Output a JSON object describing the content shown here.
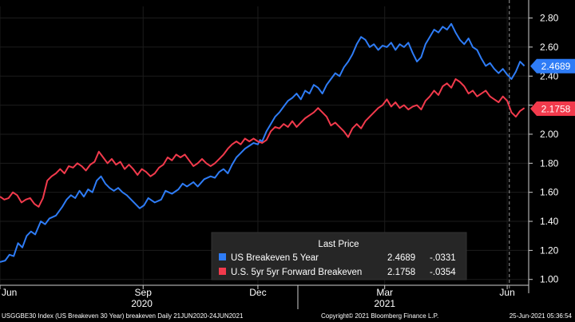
{
  "chart_data": {
    "type": "line",
    "title": "USGGBE30 Index (US Breakeven 30 Year) breakeven",
    "ylim": [
      0.96,
      2.88
    ],
    "y_ticks": [
      "1.00",
      "1.20",
      "1.40",
      "1.60",
      "1.80",
      "2.00",
      "2.20",
      "2.40",
      "2.60",
      "2.80"
    ],
    "x_tick_labels": [
      "Jun",
      "Sep",
      "Dec",
      "Mar",
      "Jun"
    ],
    "x_tick_positions": [
      0.0,
      3.33,
      6.0,
      8.95,
      11.8
    ],
    "year_labels": [
      {
        "label": "2020",
        "center": 3.3
      },
      {
        "label": "2021",
        "center": 8.95
      }
    ],
    "x_range": [
      0.0,
      12.3
    ],
    "dashed_marker_x": 11.85,
    "legend": {
      "header": "Last Price",
      "entries": [
        {
          "name": "US Breakeven 5 Year",
          "last": "2.4689",
          "change": "-.0331"
        },
        {
          "name": "U.S. 5yr 5yr Forward Breakeven",
          "last": "2.1758",
          "change": "-.0354"
        }
      ]
    },
    "series": [
      {
        "name": "US Breakeven 5 Year",
        "color": "#2e7cf6",
        "last_label": "2.4689",
        "points": [
          [
            0,
            1.12
          ],
          [
            0.12,
            1.13
          ],
          [
            0.22,
            1.17
          ],
          [
            0.32,
            1.16
          ],
          [
            0.42,
            1.25
          ],
          [
            0.52,
            1.22
          ],
          [
            0.62,
            1.3
          ],
          [
            0.72,
            1.33
          ],
          [
            0.82,
            1.31
          ],
          [
            0.95,
            1.4
          ],
          [
            1.05,
            1.38
          ],
          [
            1.15,
            1.42
          ],
          [
            1.3,
            1.44
          ],
          [
            1.45,
            1.5
          ],
          [
            1.55,
            1.55
          ],
          [
            1.65,
            1.58
          ],
          [
            1.75,
            1.56
          ],
          [
            1.85,
            1.61
          ],
          [
            1.95,
            1.57
          ],
          [
            2.05,
            1.62
          ],
          [
            2.15,
            1.6
          ],
          [
            2.25,
            1.68
          ],
          [
            2.35,
            1.71
          ],
          [
            2.45,
            1.66
          ],
          [
            2.55,
            1.63
          ],
          [
            2.65,
            1.61
          ],
          [
            2.75,
            1.63
          ],
          [
            2.85,
            1.6
          ],
          [
            2.95,
            1.58
          ],
          [
            3.05,
            1.55
          ],
          [
            3.15,
            1.52
          ],
          [
            3.25,
            1.49
          ],
          [
            3.35,
            1.51
          ],
          [
            3.45,
            1.56
          ],
          [
            3.6,
            1.53
          ],
          [
            3.75,
            1.55
          ],
          [
            3.85,
            1.61
          ],
          [
            4.0,
            1.59
          ],
          [
            4.15,
            1.62
          ],
          [
            4.25,
            1.66
          ],
          [
            4.35,
            1.64
          ],
          [
            4.5,
            1.67
          ],
          [
            4.6,
            1.64
          ],
          [
            4.75,
            1.69
          ],
          [
            4.9,
            1.71
          ],
          [
            5.0,
            1.7
          ],
          [
            5.1,
            1.74
          ],
          [
            5.2,
            1.76
          ],
          [
            5.3,
            1.73
          ],
          [
            5.4,
            1.79
          ],
          [
            5.5,
            1.84
          ],
          [
            5.6,
            1.87
          ],
          [
            5.7,
            1.9
          ],
          [
            5.8,
            1.92
          ],
          [
            5.9,
            1.94
          ],
          [
            6.0,
            1.93
          ],
          [
            6.05,
            1.96
          ],
          [
            6.1,
            1.95
          ],
          [
            6.2,
            2.02
          ],
          [
            6.3,
            2.07
          ],
          [
            6.4,
            2.12
          ],
          [
            6.5,
            2.15
          ],
          [
            6.6,
            2.19
          ],
          [
            6.7,
            2.23
          ],
          [
            6.8,
            2.25
          ],
          [
            6.9,
            2.28
          ],
          [
            7.0,
            2.24
          ],
          [
            7.1,
            2.3
          ],
          [
            7.2,
            2.28
          ],
          [
            7.3,
            2.34
          ],
          [
            7.4,
            2.32
          ],
          [
            7.5,
            2.28
          ],
          [
            7.6,
            2.34
          ],
          [
            7.7,
            2.38
          ],
          [
            7.8,
            2.42
          ],
          [
            7.9,
            2.4
          ],
          [
            8.0,
            2.46
          ],
          [
            8.1,
            2.5
          ],
          [
            8.2,
            2.55
          ],
          [
            8.3,
            2.62
          ],
          [
            8.4,
            2.67
          ],
          [
            8.5,
            2.65
          ],
          [
            8.6,
            2.6
          ],
          [
            8.7,
            2.62
          ],
          [
            8.8,
            2.58
          ],
          [
            8.9,
            2.61
          ],
          [
            9.0,
            2.6
          ],
          [
            9.1,
            2.63
          ],
          [
            9.2,
            2.58
          ],
          [
            9.3,
            2.62
          ],
          [
            9.4,
            2.6
          ],
          [
            9.5,
            2.63
          ],
          [
            9.6,
            2.56
          ],
          [
            9.7,
            2.5
          ],
          [
            9.8,
            2.53
          ],
          [
            9.9,
            2.62
          ],
          [
            10.0,
            2.67
          ],
          [
            10.1,
            2.72
          ],
          [
            10.2,
            2.7
          ],
          [
            10.3,
            2.74
          ],
          [
            10.4,
            2.72
          ],
          [
            10.5,
            2.76
          ],
          [
            10.6,
            2.7
          ],
          [
            10.7,
            2.65
          ],
          [
            10.8,
            2.62
          ],
          [
            10.9,
            2.66
          ],
          [
            11.0,
            2.6
          ],
          [
            11.1,
            2.58
          ],
          [
            11.2,
            2.52
          ],
          [
            11.3,
            2.47
          ],
          [
            11.4,
            2.49
          ],
          [
            11.5,
            2.45
          ],
          [
            11.6,
            2.42
          ],
          [
            11.7,
            2.45
          ],
          [
            11.8,
            2.41
          ],
          [
            11.9,
            2.38
          ],
          [
            12.0,
            2.43
          ],
          [
            12.1,
            2.5
          ],
          [
            12.2,
            2.47
          ]
        ]
      },
      {
        "name": "U.S. 5yr 5yr Forward Breakeven",
        "color": "#f23a4c",
        "last_label": "2.1758",
        "points": [
          [
            0,
            1.57
          ],
          [
            0.1,
            1.55
          ],
          [
            0.2,
            1.56
          ],
          [
            0.3,
            1.6
          ],
          [
            0.4,
            1.58
          ],
          [
            0.5,
            1.53
          ],
          [
            0.6,
            1.55
          ],
          [
            0.7,
            1.56
          ],
          [
            0.8,
            1.52
          ],
          [
            0.9,
            1.5
          ],
          [
            1.0,
            1.56
          ],
          [
            1.1,
            1.68
          ],
          [
            1.2,
            1.71
          ],
          [
            1.3,
            1.73
          ],
          [
            1.4,
            1.76
          ],
          [
            1.5,
            1.73
          ],
          [
            1.6,
            1.78
          ],
          [
            1.7,
            1.77
          ],
          [
            1.8,
            1.8
          ],
          [
            1.9,
            1.78
          ],
          [
            2.0,
            1.75
          ],
          [
            2.1,
            1.79
          ],
          [
            2.2,
            1.81
          ],
          [
            2.3,
            1.88
          ],
          [
            2.4,
            1.84
          ],
          [
            2.5,
            1.8
          ],
          [
            2.6,
            1.83
          ],
          [
            2.7,
            1.79
          ],
          [
            2.8,
            1.81
          ],
          [
            2.9,
            1.76
          ],
          [
            3.0,
            1.79
          ],
          [
            3.1,
            1.76
          ],
          [
            3.2,
            1.72
          ],
          [
            3.3,
            1.76
          ],
          [
            3.4,
            1.74
          ],
          [
            3.5,
            1.71
          ],
          [
            3.6,
            1.73
          ],
          [
            3.7,
            1.77
          ],
          [
            3.8,
            1.79
          ],
          [
            3.9,
            1.84
          ],
          [
            4.0,
            1.82
          ],
          [
            4.1,
            1.86
          ],
          [
            4.2,
            1.84
          ],
          [
            4.3,
            1.86
          ],
          [
            4.4,
            1.82
          ],
          [
            4.5,
            1.78
          ],
          [
            4.6,
            1.8
          ],
          [
            4.7,
            1.83
          ],
          [
            4.8,
            1.8
          ],
          [
            4.9,
            1.78
          ],
          [
            5.0,
            1.8
          ],
          [
            5.1,
            1.83
          ],
          [
            5.2,
            1.86
          ],
          [
            5.3,
            1.9
          ],
          [
            5.4,
            1.93
          ],
          [
            5.5,
            1.95
          ],
          [
            5.6,
            1.93
          ],
          [
            5.7,
            1.97
          ],
          [
            5.8,
            1.95
          ],
          [
            5.9,
            1.97
          ],
          [
            6.0,
            1.95
          ],
          [
            6.1,
            1.94
          ],
          [
            6.2,
            1.96
          ],
          [
            6.3,
            2.02
          ],
          [
            6.4,
            2.05
          ],
          [
            6.5,
            2.04
          ],
          [
            6.6,
            2.07
          ],
          [
            6.7,
            2.05
          ],
          [
            6.8,
            2.09
          ],
          [
            6.9,
            2.05
          ],
          [
            7.0,
            2.08
          ],
          [
            7.1,
            2.11
          ],
          [
            7.2,
            2.13
          ],
          [
            7.3,
            2.15
          ],
          [
            7.4,
            2.18
          ],
          [
            7.5,
            2.15
          ],
          [
            7.6,
            2.12
          ],
          [
            7.7,
            2.06
          ],
          [
            7.8,
            2.08
          ],
          [
            7.9,
            2.05
          ],
          [
            8.0,
            2.02
          ],
          [
            8.1,
            1.98
          ],
          [
            8.2,
            2.04
          ],
          [
            8.3,
            2.07
          ],
          [
            8.4,
            2.04
          ],
          [
            8.5,
            2.09
          ],
          [
            8.6,
            2.12
          ],
          [
            8.7,
            2.15
          ],
          [
            8.8,
            2.18
          ],
          [
            8.9,
            2.2
          ],
          [
            9.0,
            2.24
          ],
          [
            9.1,
            2.19
          ],
          [
            9.2,
            2.22
          ],
          [
            9.3,
            2.18
          ],
          [
            9.4,
            2.2
          ],
          [
            9.5,
            2.17
          ],
          [
            9.6,
            2.19
          ],
          [
            9.7,
            2.2
          ],
          [
            9.8,
            2.17
          ],
          [
            9.9,
            2.23
          ],
          [
            10.0,
            2.26
          ],
          [
            10.1,
            2.3
          ],
          [
            10.2,
            2.27
          ],
          [
            10.3,
            2.33
          ],
          [
            10.4,
            2.35
          ],
          [
            10.5,
            2.32
          ],
          [
            10.6,
            2.38
          ],
          [
            10.7,
            2.36
          ],
          [
            10.8,
            2.33
          ],
          [
            10.9,
            2.28
          ],
          [
            11.0,
            2.3
          ],
          [
            11.1,
            2.26
          ],
          [
            11.2,
            2.28
          ],
          [
            11.3,
            2.3
          ],
          [
            11.4,
            2.26
          ],
          [
            11.5,
            2.24
          ],
          [
            11.6,
            2.22
          ],
          [
            11.7,
            2.26
          ],
          [
            11.8,
            2.23
          ],
          [
            11.9,
            2.15
          ],
          [
            12.0,
            2.12
          ],
          [
            12.1,
            2.16
          ],
          [
            12.2,
            2.18
          ]
        ]
      }
    ],
    "footer_left": "USGGBE30 Index (US Breakeven 30 Year) breakeven  Daily 21JUN2020-24JUN2021",
    "footer_center": "Copyright© 2021 Bloomberg Finance L.P.",
    "footer_right": "25-Jun-2021 05:36:54"
  }
}
